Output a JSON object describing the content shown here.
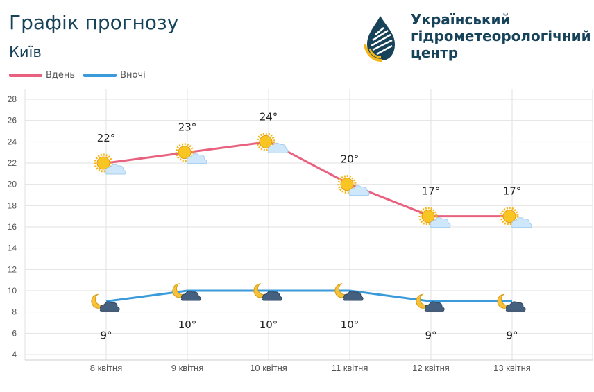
{
  "header": {
    "title": "Графік прогнозу",
    "city": "Київ",
    "org_name_lines": [
      "Український",
      "гідрометеорологічний",
      "центр"
    ]
  },
  "colors": {
    "day": "#e8627f",
    "night": "#3b9ad9",
    "text_dark": "#17435a"
  },
  "chart_data": {
    "type": "line",
    "categories": [
      "8 квітня",
      "9 квітня",
      "10 квітня",
      "11 квітня",
      "12 квітня",
      "13 квітня"
    ],
    "series": [
      {
        "name": "Вдень",
        "values": [
          22,
          23,
          24,
          20,
          17,
          17
        ],
        "labels": [
          "22°",
          "23°",
          "24°",
          "20°",
          "17°",
          "17°"
        ],
        "icon": "sun-cloud-icon"
      },
      {
        "name": "Вночі",
        "values": [
          9,
          10,
          10,
          10,
          9,
          9
        ],
        "labels": [
          "9°",
          "10°",
          "10°",
          "10°",
          "9°",
          "9°"
        ],
        "icon": "moon-cloud-icon"
      }
    ],
    "ylim": [
      4,
      28
    ],
    "yticks": [
      4,
      6,
      8,
      10,
      12,
      14,
      16,
      18,
      20,
      22,
      24,
      26,
      28
    ],
    "grid": true,
    "legend": "top-left"
  }
}
